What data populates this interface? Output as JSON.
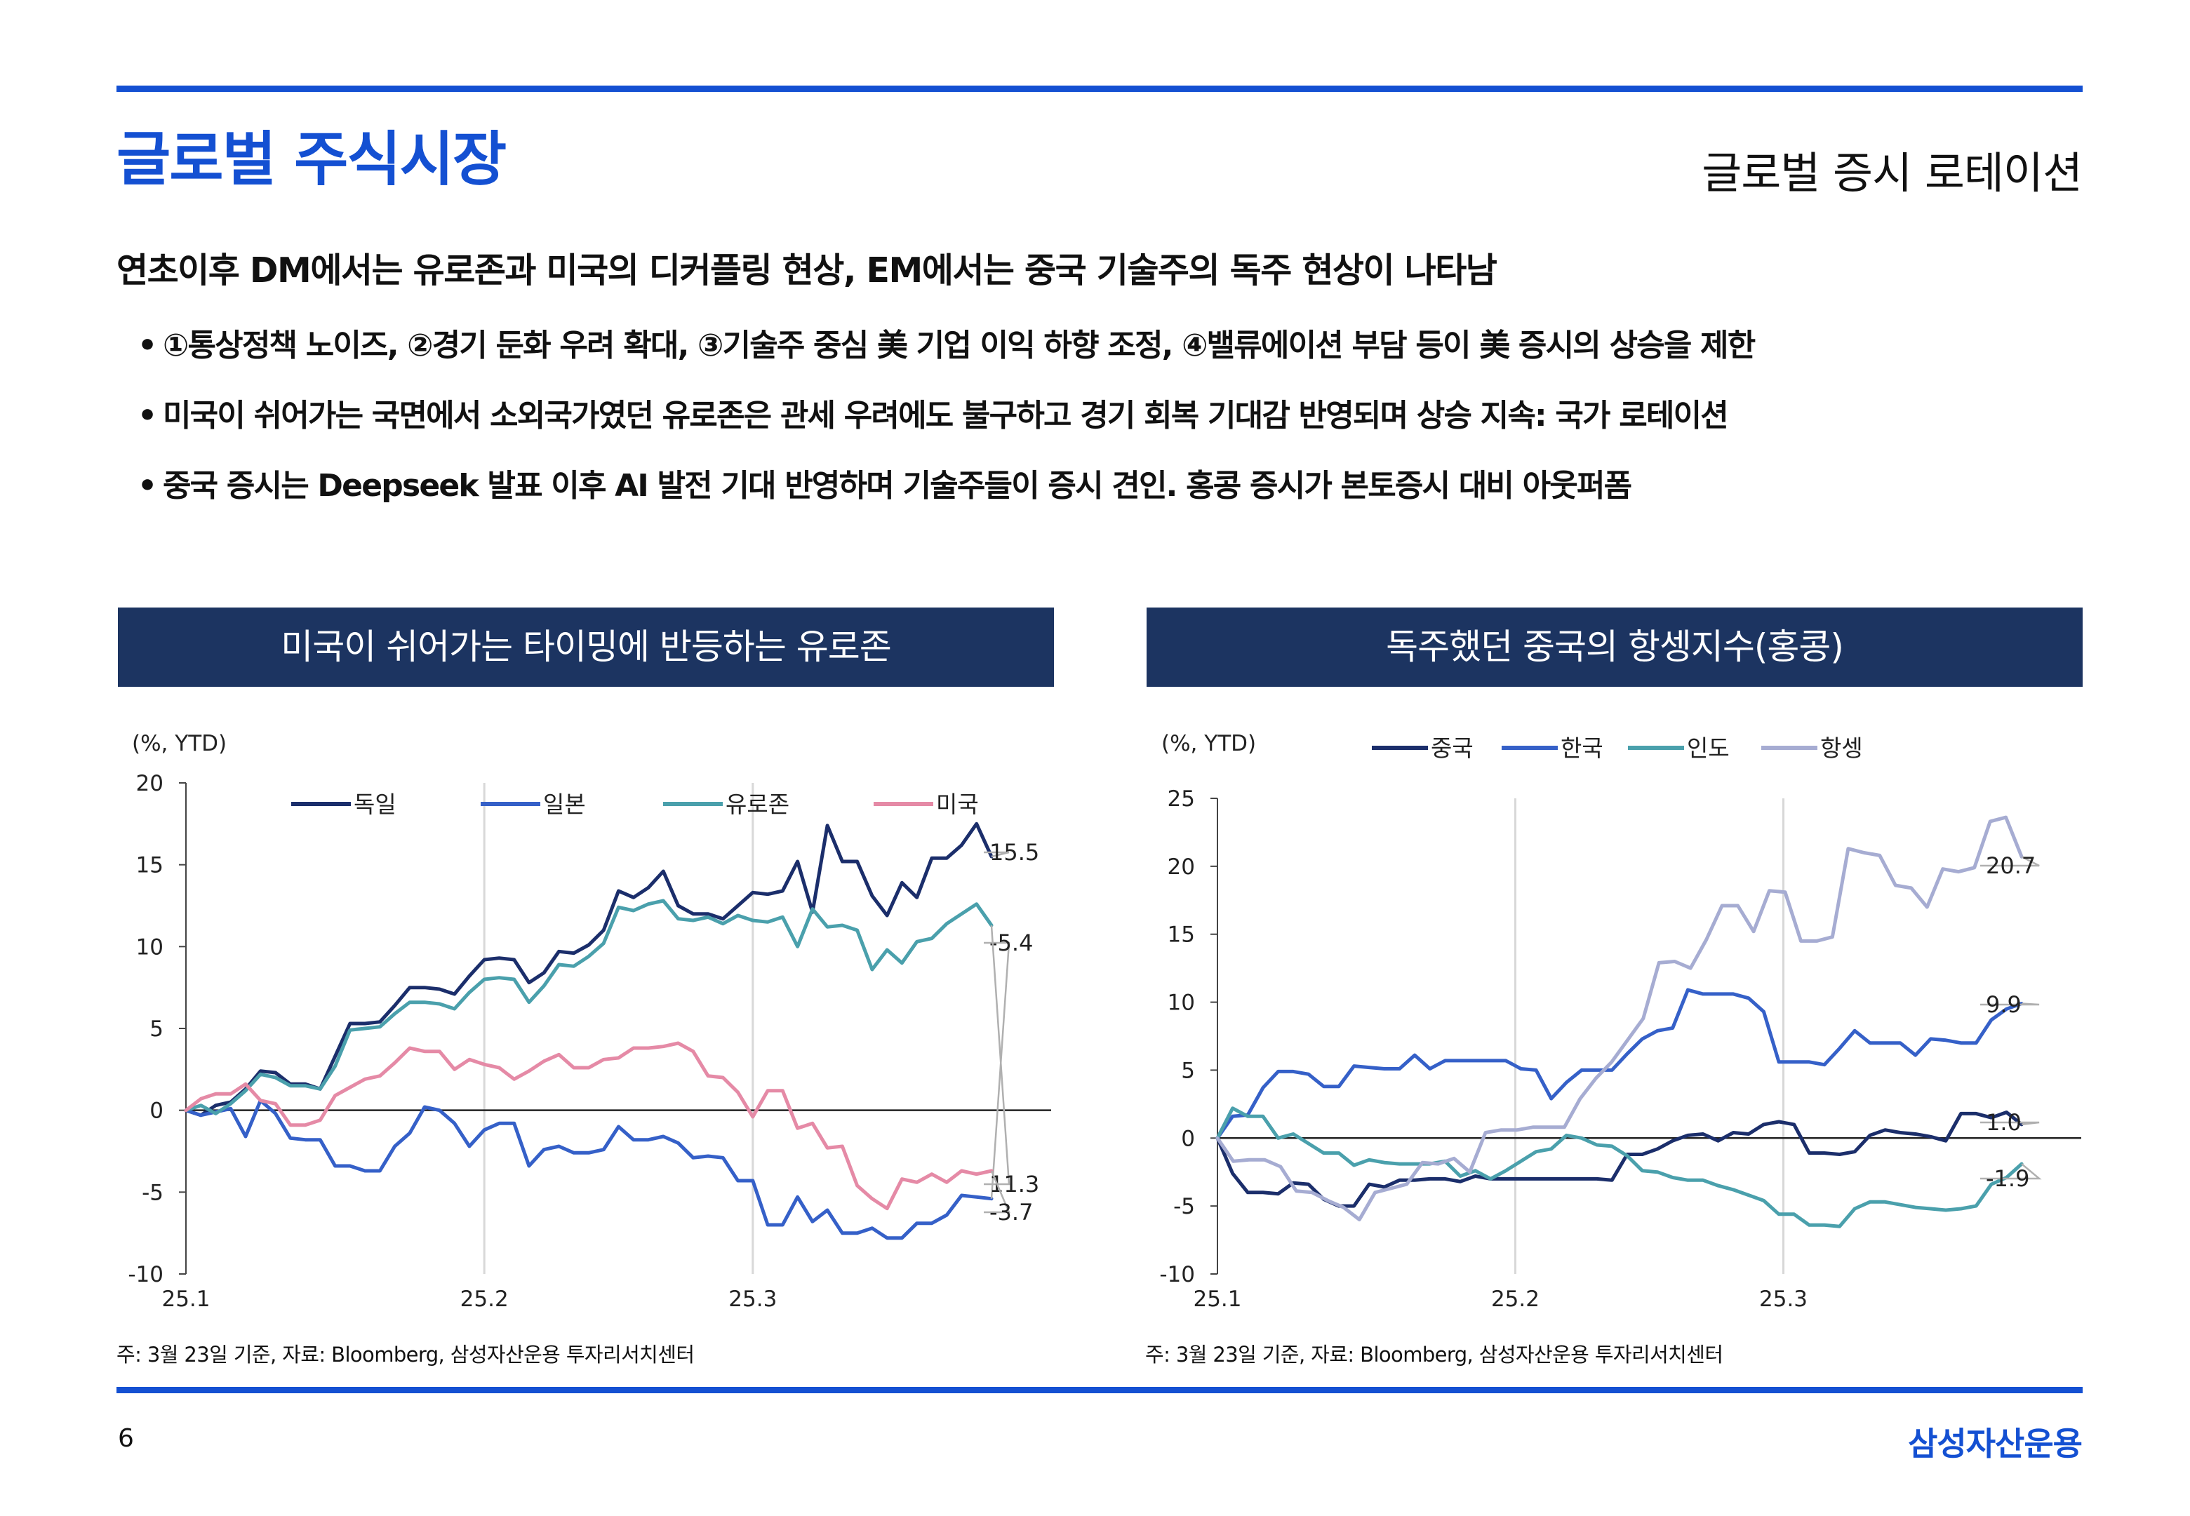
{
  "header": {
    "title": "글로벌 주식시장",
    "section": "글로벌 증시 로테이션"
  },
  "headline": "연초이후 DM에서는 유로존과 미국의 디커플링 현상, EM에서는 중국 기술주의 독주 현상이 나타남",
  "bullets": [
    "①통상정책 노이즈, ②경기 둔화 우려 확대, ③기술주 중심 美 기업 이익 하향 조정, ④밸류에이션 부담 등이 美 증시의 상승을 제한",
    "미국이 쉬어가는 국면에서 소외국가였던 유로존은 관세 우려에도 불구하고 경기 회복 기대감 반영되며 상승 지속: 국가 로테이션",
    "중국 증시는 Deepseek 발표 이후 AI 발전 기대 반영하며 기술주들이 증시 견인. 홍콩 증시가 본토증시 대비 아웃퍼폼"
  ],
  "bullet_marker": "•",
  "footer": {
    "page": "6",
    "brand": "삼성자산운용"
  },
  "colors": {
    "brand_blue": "#1450d2",
    "panel_navy": "#1c3461",
    "series_navy": "#1b2e6b",
    "series_blue": "#3560c8",
    "series_teal": "#4aa0ac",
    "series_pink": "#e58aa6",
    "series_lavender": "#a6acd2"
  },
  "chart_data": [
    {
      "type": "line",
      "title": "미국이 쉬어가는 타이밍에 반등하는 유로존",
      "unit_label": "(%, YTD)",
      "xlabel": "",
      "ylabel": "",
      "ylim": [
        -10,
        20
      ],
      "yticks": [
        -10,
        -5,
        0,
        5,
        10,
        15,
        20
      ],
      "x_range": [
        0,
        58
      ],
      "x_ticks": [
        {
          "x": 0,
          "label": "25.1"
        },
        {
          "x": 20,
          "label": "25.2"
        },
        {
          "x": 38,
          "label": "25.3"
        }
      ],
      "vertical_gridlines_at": [
        20,
        38
      ],
      "legend": "top",
      "note": "주: 3월 23일 기준, 자료: Bloomberg, 삼성자산운용 투자리서치센터",
      "series": [
        {
          "name": "독일",
          "color": "#1b2e6b",
          "end_label": "15.5",
          "values": [
            0,
            -0.3,
            0.3,
            0.5,
            1.3,
            2.4,
            2.3,
            1.6,
            1.6,
            1.3,
            3.3,
            5.3,
            5.3,
            5.4,
            6.4,
            7.5,
            7.5,
            7.4,
            7.1,
            8.2,
            9.2,
            9.3,
            9.2,
            7.8,
            8.4,
            9.7,
            9.6,
            10.1,
            11.0,
            13.4,
            13.0,
            13.6,
            14.6,
            12.5,
            12.0,
            12.0,
            11.7,
            12.5,
            13.3,
            13.2,
            13.4,
            15.2,
            12.1,
            17.4,
            15.2,
            15.2,
            13.1,
            11.9,
            13.9,
            13.0,
            15.4,
            15.4,
            16.2,
            17.5,
            15.5
          ]
        },
        {
          "name": "일본",
          "color": "#3560c8",
          "end_label": "-5.4",
          "values": [
            0,
            -0.3,
            -0.1,
            0.1,
            -1.6,
            0.6,
            -0.2,
            -1.7,
            -1.8,
            -1.8,
            -3.4,
            -3.4,
            -3.7,
            -3.7,
            -2.2,
            -1.4,
            0.2,
            0.0,
            -0.8,
            -2.2,
            -1.2,
            -0.8,
            -0.8,
            -3.4,
            -2.4,
            -2.2,
            -2.6,
            -2.6,
            -2.4,
            -1.0,
            -1.8,
            -1.8,
            -1.6,
            -2.0,
            -2.9,
            -2.8,
            -2.9,
            -4.3,
            -4.3,
            -7.0,
            -7.0,
            -5.3,
            -6.8,
            -6.1,
            -7.5,
            -7.5,
            -7.2,
            -7.8,
            -7.8,
            -6.9,
            -6.9,
            -6.4,
            -5.2,
            -5.3,
            -5.4
          ]
        },
        {
          "name": "유로존",
          "color": "#4aa0ac",
          "end_label": "11.3",
          "values": [
            0,
            0.3,
            -0.2,
            0.4,
            1.2,
            2.2,
            2.0,
            1.5,
            1.5,
            1.3,
            2.7,
            4.9,
            5.0,
            5.1,
            5.9,
            6.6,
            6.6,
            6.5,
            6.2,
            7.2,
            8.0,
            8.1,
            8.0,
            6.6,
            7.6,
            8.9,
            8.8,
            9.4,
            10.2,
            12.4,
            12.2,
            12.6,
            12.8,
            11.7,
            11.6,
            11.8,
            11.4,
            11.9,
            11.6,
            11.5,
            11.8,
            10.0,
            12.3,
            11.2,
            11.3,
            11.0,
            8.6,
            9.8,
            9.0,
            10.3,
            10.5,
            11.4,
            12.0,
            12.6,
            11.3
          ]
        },
        {
          "name": "미국",
          "color": "#e58aa6",
          "end_label": "-3.7",
          "values": [
            0,
            0.7,
            1.0,
            1.0,
            1.6,
            0.6,
            0.4,
            -0.9,
            -0.9,
            -0.6,
            0.9,
            1.4,
            1.9,
            2.1,
            2.9,
            3.8,
            3.6,
            3.6,
            2.5,
            3.1,
            2.8,
            2.6,
            1.9,
            2.4,
            3.0,
            3.4,
            2.6,
            2.6,
            3.1,
            3.2,
            3.8,
            3.8,
            3.9,
            4.1,
            3.6,
            2.1,
            2.0,
            1.1,
            -0.4,
            1.2,
            1.2,
            -1.1,
            -0.8,
            -2.3,
            -2.2,
            -4.6,
            -5.4,
            -6.0,
            -4.2,
            -4.4,
            -3.9,
            -4.4,
            -3.7,
            -3.9,
            -3.7
          ]
        }
      ]
    },
    {
      "type": "line",
      "title": "독주했던 중국의 항셍지수(홍콩)",
      "unit_label": "(%, YTD)",
      "xlabel": "",
      "ylabel": "",
      "ylim": [
        -10,
        25
      ],
      "yticks": [
        -10,
        -5,
        0,
        5,
        10,
        15,
        20,
        25
      ],
      "x_range": [
        0,
        58
      ],
      "x_ticks": [
        {
          "x": 0,
          "label": "25.1"
        },
        {
          "x": 20,
          "label": "25.2"
        },
        {
          "x": 38,
          "label": "25.3"
        }
      ],
      "vertical_gridlines_at": [
        20,
        38
      ],
      "legend": "top",
      "note": "주: 3월 23일 기준, 자료: Bloomberg, 삼성자산운용 투자리서치센터",
      "series": [
        {
          "name": "중국",
          "color": "#1b2e6b",
          "end_label": "1.0",
          "values": [
            0,
            -2.6,
            -4.0,
            -4.0,
            -4.1,
            -3.3,
            -3.4,
            -4.5,
            -5.0,
            -5.0,
            -3.4,
            -3.6,
            -3.1,
            -3.1,
            -3.0,
            -3.0,
            -3.2,
            -2.8,
            -3.0,
            -3.0,
            -3.0,
            -3.0,
            -3.0,
            -3.0,
            -3.0,
            -3.0,
            -3.1,
            -1.2,
            -1.2,
            -0.8,
            -0.2,
            0.2,
            0.3,
            -0.2,
            0.4,
            0.3,
            1.0,
            1.2,
            1.0,
            -1.1,
            -1.1,
            -1.2,
            -1.0,
            0.2,
            0.6,
            0.4,
            0.3,
            0.1,
            -0.2,
            1.8,
            1.8,
            1.5,
            1.9,
            1.0
          ]
        },
        {
          "name": "한국",
          "color": "#3560c8",
          "end_label": "9.9",
          "values": [
            0,
            1.6,
            1.7,
            3.7,
            4.9,
            4.9,
            4.7,
            3.8,
            3.8,
            5.3,
            5.2,
            5.1,
            5.1,
            6.1,
            5.1,
            5.7,
            5.7,
            5.7,
            5.7,
            5.7,
            5.1,
            5.0,
            2.9,
            4.1,
            5.0,
            5.0,
            5.0,
            6.2,
            7.3,
            7.9,
            8.1,
            10.9,
            10.6,
            10.6,
            10.6,
            10.3,
            9.3,
            5.6,
            5.6,
            5.6,
            5.4,
            6.6,
            7.9,
            7.0,
            7.0,
            7.0,
            6.1,
            7.3,
            7.2,
            7.0,
            7.0,
            8.7,
            9.5,
            9.9
          ]
        },
        {
          "name": "인도",
          "color": "#4aa0ac",
          "end_label": "-1.9",
          "values": [
            0,
            2.2,
            1.6,
            1.6,
            0.0,
            0.3,
            -0.4,
            -1.1,
            -1.1,
            -2.0,
            -1.6,
            -1.8,
            -1.9,
            -1.9,
            -1.9,
            -1.7,
            -2.8,
            -2.4,
            -3.0,
            -2.4,
            -1.7,
            -1.0,
            -0.8,
            0.2,
            0.0,
            -0.5,
            -0.6,
            -1.3,
            -2.4,
            -2.5,
            -2.9,
            -3.1,
            -3.1,
            -3.5,
            -3.8,
            -4.2,
            -4.6,
            -5.6,
            -5.6,
            -6.4,
            -6.4,
            -6.5,
            -5.2,
            -4.7,
            -4.7,
            -4.9,
            -5.1,
            -5.2,
            -5.3,
            -5.2,
            -5.0,
            -3.4,
            -2.9,
            -1.9
          ]
        },
        {
          "name": "항셍",
          "color": "#a6acd2",
          "end_label": "20.7",
          "values": [
            0,
            -1.7,
            -1.6,
            -1.6,
            -2.1,
            -3.9,
            -4.0,
            -4.6,
            -5.1,
            -6.0,
            -4.0,
            -3.7,
            -3.4,
            -1.8,
            -1.9,
            -1.5,
            -2.5,
            0.4,
            0.6,
            0.6,
            0.8,
            0.8,
            0.8,
            2.9,
            4.4,
            5.6,
            7.2,
            8.8,
            12.9,
            13.0,
            12.5,
            14.6,
            17.1,
            17.1,
            15.2,
            18.2,
            18.1,
            14.5,
            14.5,
            14.8,
            21.3,
            21.0,
            20.8,
            18.6,
            18.4,
            17.0,
            19.8,
            19.6,
            19.9,
            23.3,
            23.6,
            20.7
          ]
        }
      ]
    }
  ]
}
